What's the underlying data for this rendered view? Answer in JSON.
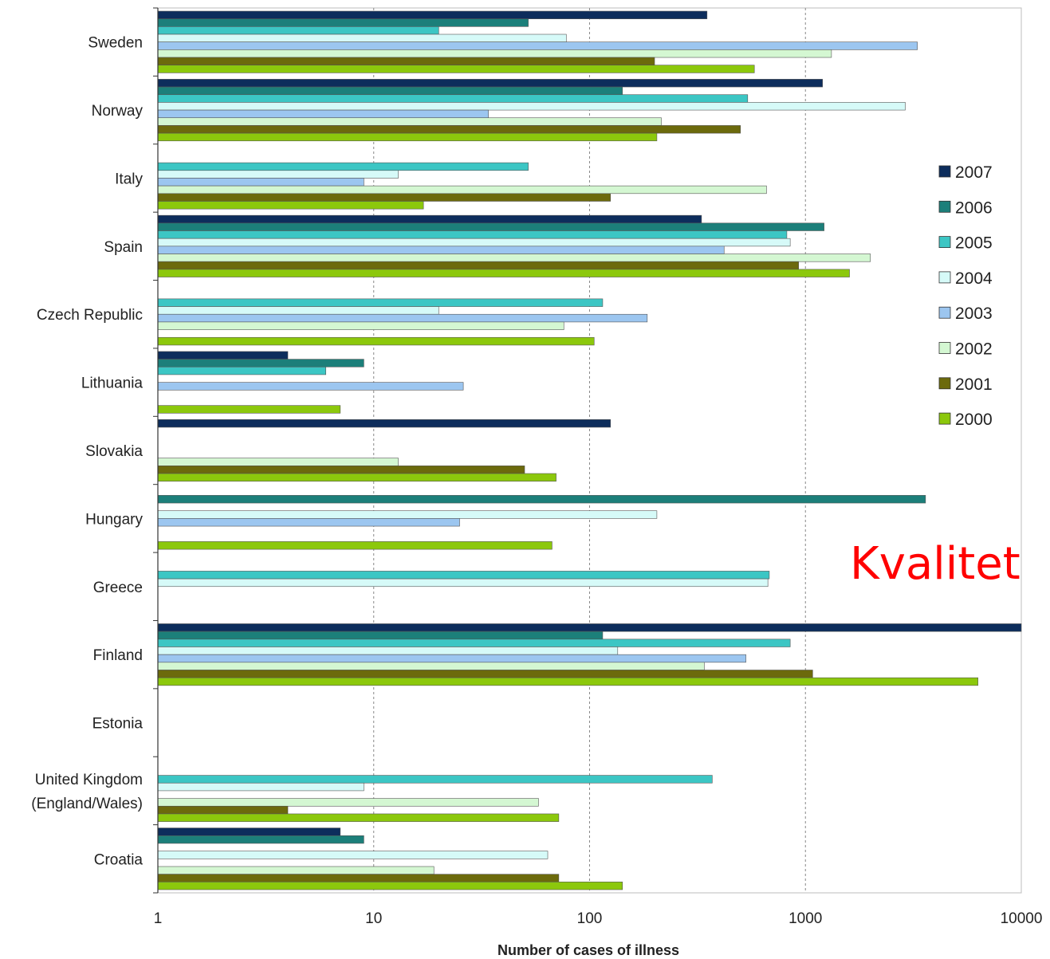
{
  "overlay_text": "Kvalitet",
  "chart_data": {
    "type": "bar",
    "orientation": "horizontal",
    "title": "",
    "xlabel": "Number of cases of illness",
    "ylabel": "",
    "xscale": "log",
    "xlim": [
      1,
      10000
    ],
    "xticks": [
      "1",
      "10",
      "100",
      "1000",
      "10000"
    ],
    "grid": "vertical dashed at major ticks",
    "legend_position": "right",
    "categories": [
      "Sweden",
      "Norway",
      "Italy",
      "Spain",
      "Czech Republic",
      "Lithuania",
      "Slovakia",
      "Hungary",
      "Greece",
      "Finland",
      "Estonia",
      "United Kingdom\n(England/Wales)",
      "Croatia"
    ],
    "series": [
      {
        "name": "2007",
        "color": "#0d2d5c",
        "values": [
          350,
          1200,
          null,
          330,
          null,
          4,
          125,
          null,
          null,
          10000,
          null,
          null,
          7
        ]
      },
      {
        "name": "2006",
        "color": "#1c7f7a",
        "values": [
          52,
          142,
          null,
          1220,
          null,
          9,
          null,
          3600,
          null,
          115,
          null,
          null,
          9
        ]
      },
      {
        "name": "2005",
        "color": "#3cc6c4",
        "values": [
          20,
          540,
          52,
          820,
          115,
          6,
          null,
          null,
          680,
          850,
          null,
          370,
          null
        ]
      },
      {
        "name": "2004",
        "color": "#d6faf8",
        "values": [
          78,
          2900,
          13,
          850,
          20,
          null,
          null,
          205,
          670,
          135,
          null,
          9,
          64
        ]
      },
      {
        "name": "2003",
        "color": "#9cc6f0",
        "values": [
          3300,
          34,
          9,
          420,
          185,
          26,
          null,
          25,
          null,
          530,
          null,
          null,
          null
        ]
      },
      {
        "name": "2002",
        "color": "#d4f7d2",
        "values": [
          1320,
          215,
          660,
          2000,
          76,
          null,
          13,
          null,
          null,
          340,
          null,
          58,
          19
        ]
      },
      {
        "name": "2001",
        "color": "#6c6a0c",
        "values": [
          200,
          500,
          125,
          930,
          null,
          null,
          50,
          null,
          null,
          1080,
          null,
          4,
          72
        ]
      },
      {
        "name": "2000",
        "color": "#8cc80c",
        "values": [
          580,
          205,
          17,
          1600,
          105,
          7,
          70,
          67,
          null,
          6300,
          null,
          72,
          142
        ]
      }
    ]
  }
}
